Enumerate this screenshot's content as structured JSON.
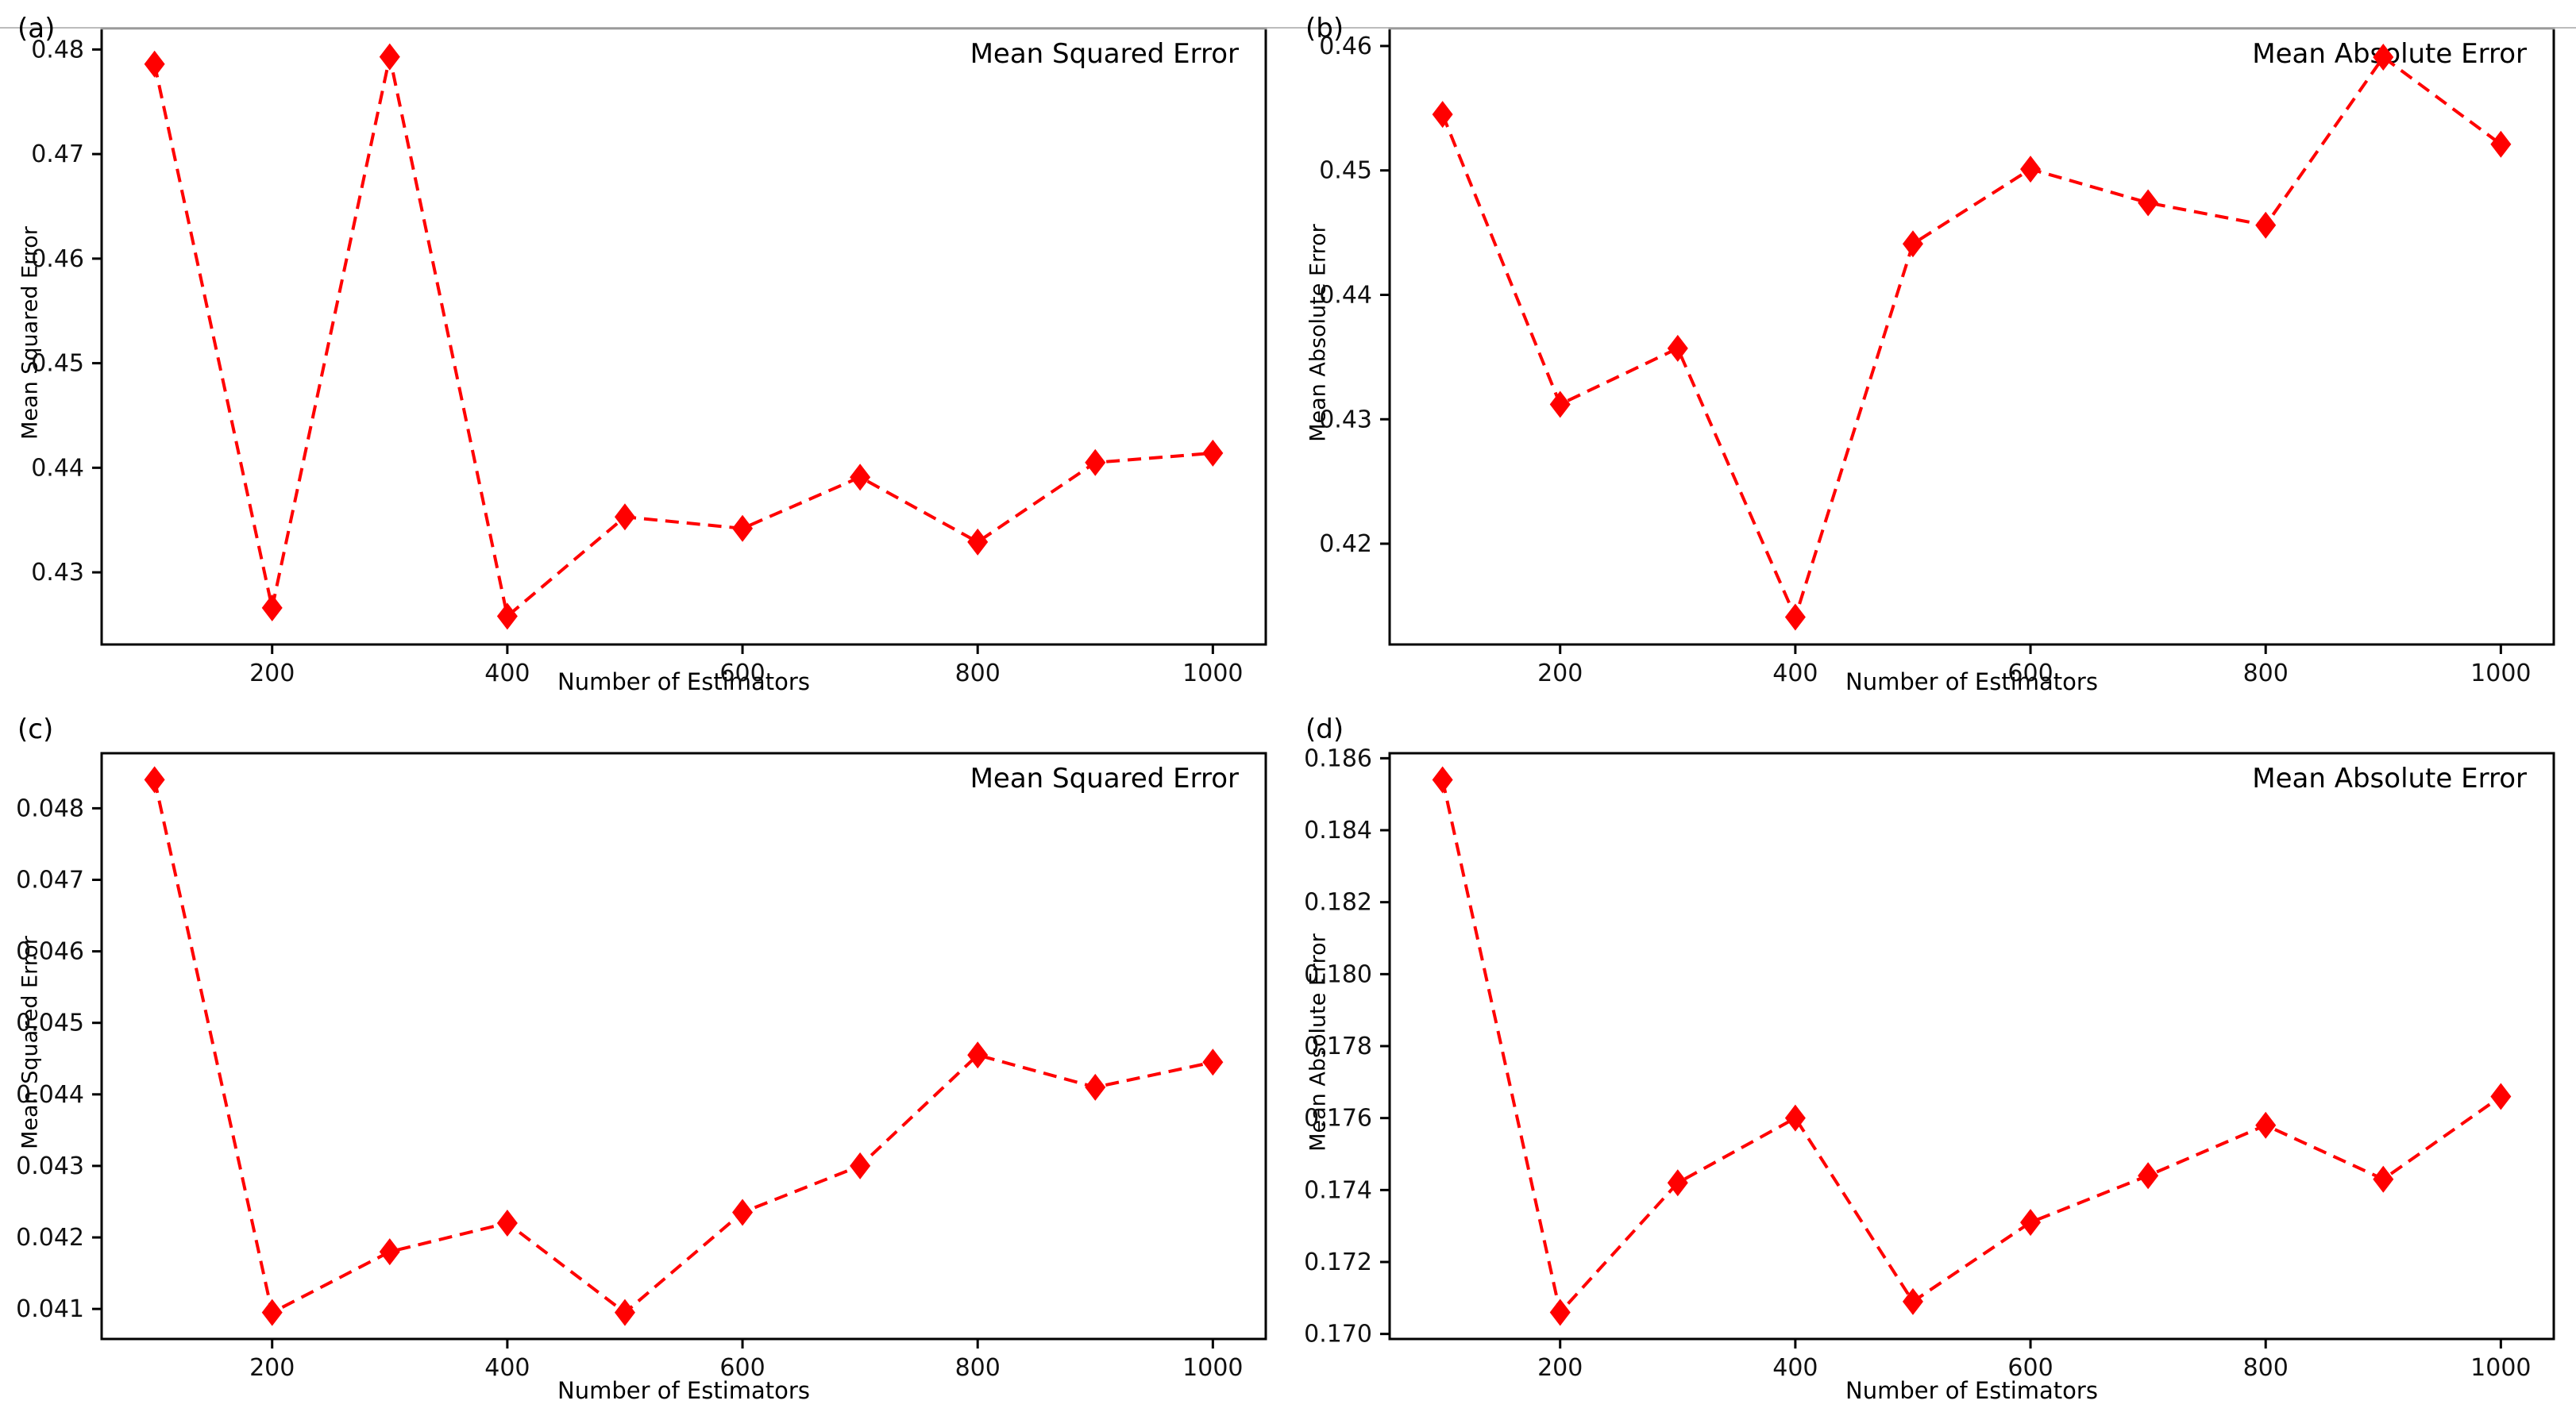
{
  "figure": {
    "background": "#ffffff",
    "xlabel_shared": "Number of Estimators"
  },
  "chart_data": [
    {
      "id": "a",
      "panel_label": "(a)",
      "type": "line",
      "title": "Mean Squared Error",
      "xlabel": "Number of Estimators",
      "ylabel": "Mean Squared Error",
      "line_color": "#ff0000",
      "line_style": "dashed",
      "marker": "diamond",
      "grid": false,
      "legend": "none",
      "x": [
        100,
        200,
        300,
        400,
        500,
        600,
        700,
        800,
        900,
        1000
      ],
      "y": [
        0.4786,
        0.4266,
        0.4793,
        0.4258,
        0.4353,
        0.4342,
        0.4391,
        0.4329,
        0.4405,
        0.4414
      ],
      "xlim": [
        55,
        1045
      ],
      "ylim": [
        0.4231,
        0.482
      ],
      "xtick_values": [
        200,
        400,
        600,
        800,
        1000
      ],
      "xtick_labels": [
        "200",
        "400",
        "600",
        "800",
        "1000"
      ],
      "ytick_values": [
        0.43,
        0.44,
        0.45,
        0.46,
        0.47,
        0.48
      ],
      "ytick_labels": [
        "0.43",
        "0.44",
        "0.45",
        "0.46",
        "0.47",
        "0.48"
      ]
    },
    {
      "id": "b",
      "panel_label": "(b)",
      "type": "line",
      "title": "Mean Absolute Error",
      "xlabel": "Number of Estimators",
      "ylabel": "Mean Absolute Error",
      "line_color": "#ff0000",
      "line_style": "dashed",
      "marker": "diamond",
      "grid": false,
      "legend": "none",
      "x": [
        100,
        200,
        300,
        400,
        500,
        600,
        700,
        800,
        900,
        1000
      ],
      "y": [
        0.4545,
        0.4312,
        0.4357,
        0.4141,
        0.4441,
        0.4501,
        0.4474,
        0.4456,
        0.4591,
        0.4521
      ],
      "xlim": [
        55,
        1045
      ],
      "ylim": [
        0.4119,
        0.4614
      ],
      "xtick_values": [
        200,
        400,
        600,
        800,
        1000
      ],
      "xtick_labels": [
        "200",
        "400",
        "600",
        "800",
        "1000"
      ],
      "ytick_values": [
        0.42,
        0.43,
        0.44,
        0.45,
        0.46
      ],
      "ytick_labels": [
        "0.42",
        "0.43",
        "0.44",
        "0.45",
        "0.46"
      ]
    },
    {
      "id": "c",
      "panel_label": "(c)",
      "type": "line",
      "title": "Mean Squared Error",
      "xlabel": "Number of Estimators",
      "ylabel": "Mean Squared Error",
      "line_color": "#ff0000",
      "line_style": "dashed",
      "marker": "diamond",
      "grid": false,
      "legend": "none",
      "x": [
        100,
        200,
        300,
        400,
        500,
        600,
        700,
        800,
        900,
        1000
      ],
      "y": [
        0.0484,
        0.04095,
        0.0418,
        0.0422,
        0.04095,
        0.04235,
        0.043,
        0.04455,
        0.0441,
        0.04445
      ],
      "xlim": [
        55,
        1045
      ],
      "ylim": [
        0.04058,
        0.04877
      ],
      "xtick_values": [
        200,
        400,
        600,
        800,
        1000
      ],
      "xtick_labels": [
        "200",
        "400",
        "600",
        "800",
        "1000"
      ],
      "ytick_values": [
        0.041,
        0.042,
        0.043,
        0.044,
        0.045,
        0.046,
        0.047,
        0.048
      ],
      "ytick_labels": [
        "0.041",
        "0.042",
        "0.043",
        "0.044",
        "0.045",
        "0.046",
        "0.047",
        "0.048"
      ]
    },
    {
      "id": "d",
      "panel_label": "(d)",
      "type": "line",
      "title": "Mean Absolute Error",
      "xlabel": "Number of Estimators",
      "ylabel": "Mean Absolute Error",
      "line_color": "#ff0000",
      "line_style": "dashed",
      "marker": "diamond",
      "grid": false,
      "legend": "none",
      "x": [
        100,
        200,
        300,
        400,
        500,
        600,
        700,
        800,
        900,
        1000
      ],
      "y": [
        0.1854,
        0.1706,
        0.1742,
        0.176,
        0.1709,
        0.1731,
        0.1744,
        0.1758,
        0.1743,
        0.1766
      ],
      "xlim": [
        55,
        1045
      ],
      "ylim": [
        0.16986,
        0.18614
      ],
      "xtick_values": [
        200,
        400,
        600,
        800,
        1000
      ],
      "xtick_labels": [
        "200",
        "400",
        "600",
        "800",
        "1000"
      ],
      "ytick_values": [
        0.17,
        0.172,
        0.174,
        0.176,
        0.178,
        0.18,
        0.182,
        0.184,
        0.186
      ],
      "ytick_labels": [
        "0.170",
        "0.172",
        "0.174",
        "0.176",
        "0.178",
        "0.180",
        "0.182",
        "0.184",
        "0.186"
      ]
    }
  ]
}
